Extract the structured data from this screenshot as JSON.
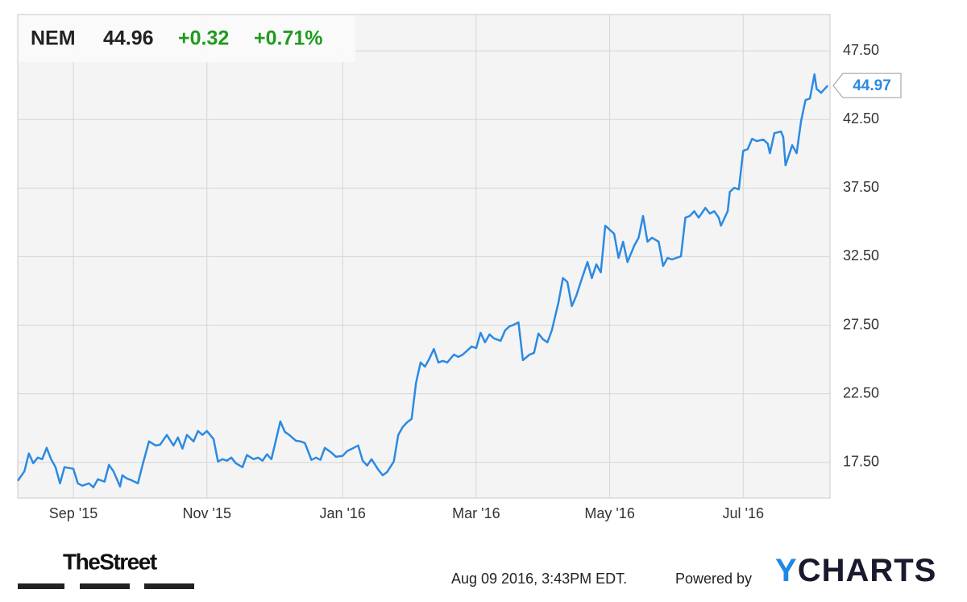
{
  "chart_data": {
    "type": "line",
    "symbol": "NEM",
    "price": "44.96",
    "change": "+0.32",
    "change_pct": "+0.71%",
    "color": "#2b8ae2",
    "grid": true,
    "xlim": [
      0,
      365
    ],
    "xticks": [
      {
        "value": 25,
        "label": "Sep '15"
      },
      {
        "value": 85,
        "label": "Nov '15"
      },
      {
        "value": 146,
        "label": "Jan '16"
      },
      {
        "value": 206,
        "label": "Mar '16"
      },
      {
        "value": 266,
        "label": "May '16"
      },
      {
        "value": 326,
        "label": "Jul '16"
      }
    ],
    "ylim": [
      14.9,
      50.15
    ],
    "yticks": [
      {
        "value": 17.5,
        "label": "17.50"
      },
      {
        "value": 22.5,
        "label": "22.50"
      },
      {
        "value": 27.5,
        "label": "27.50"
      },
      {
        "value": 32.5,
        "label": "32.50"
      },
      {
        "value": 37.5,
        "label": "37.50"
      },
      {
        "value": 42.5,
        "label": "42.50"
      },
      {
        "value": 47.5,
        "label": "47.50"
      }
    ],
    "x": [
      0,
      3,
      5,
      7,
      9,
      11,
      13,
      15,
      17,
      19,
      21,
      25,
      27,
      29,
      32,
      34,
      36,
      39,
      41,
      43,
      46,
      47,
      49,
      51,
      54,
      56,
      59,
      62,
      64,
      67,
      70,
      72,
      74,
      76,
      79,
      81,
      83,
      85,
      88,
      90,
      92,
      94,
      96,
      98,
      101,
      103,
      106,
      108,
      110,
      112,
      114,
      118,
      120,
      122,
      125,
      127,
      129,
      132,
      134,
      136,
      138,
      141,
      143,
      146,
      148,
      151,
      153,
      155,
      157,
      159,
      162,
      164,
      166,
      169,
      171,
      173,
      175,
      177,
      179,
      181,
      183,
      185,
      187,
      189,
      191,
      193,
      196,
      198,
      200,
      202,
      204,
      206,
      208,
      210,
      212,
      214,
      217,
      219,
      221,
      223,
      225,
      227,
      230,
      232,
      234,
      236,
      238,
      240,
      243,
      245,
      247,
      249,
      251,
      253,
      256,
      258,
      260,
      262,
      264,
      266,
      268,
      270,
      272,
      274,
      277,
      279,
      281,
      283,
      285,
      288,
      290,
      292,
      294,
      296,
      298,
      300,
      302,
      304,
      306,
      309,
      311,
      313,
      315,
      316,
      319,
      320,
      322,
      324,
      326,
      328,
      330,
      332,
      335,
      337,
      338,
      340,
      343,
      344,
      345,
      348,
      350,
      352,
      354,
      356,
      358,
      359,
      361,
      362,
      364
    ],
    "values": [
      16.15,
      16.85,
      18.15,
      17.44,
      17.85,
      17.73,
      18.56,
      17.73,
      17.15,
      15.97,
      17.15,
      17.03,
      15.97,
      15.8,
      15.97,
      15.68,
      16.27,
      16.09,
      17.32,
      16.85,
      15.74,
      16.56,
      16.33,
      16.21,
      15.97,
      17.27,
      19.03,
      18.73,
      18.79,
      19.5,
      18.73,
      19.32,
      18.5,
      19.5,
      19.03,
      19.79,
      19.5,
      19.79,
      19.2,
      17.56,
      17.73,
      17.62,
      17.85,
      17.44,
      17.15,
      18.03,
      17.73,
      17.85,
      17.62,
      18.09,
      17.73,
      20.49,
      19.73,
      19.5,
      19.08,
      19.03,
      18.91,
      17.68,
      17.85,
      17.68,
      18.56,
      18.2,
      17.91,
      17.97,
      18.32,
      18.56,
      18.73,
      17.62,
      17.27,
      17.73,
      16.97,
      16.56,
      16.8,
      17.56,
      19.5,
      20.08,
      20.43,
      20.67,
      23.31,
      24.78,
      24.48,
      25.07,
      25.77,
      24.78,
      24.9,
      24.78,
      25.36,
      25.19,
      25.36,
      25.66,
      25.95,
      25.83,
      26.95,
      26.25,
      26.83,
      26.54,
      26.36,
      27.12,
      27.42,
      27.54,
      27.71,
      24.95,
      25.36,
      25.48,
      26.89,
      26.48,
      26.25,
      27.12,
      29.18,
      30.94,
      30.65,
      28.89,
      29.65,
      30.65,
      32.11,
      30.94,
      31.94,
      31.35,
      34.76,
      34.46,
      34.17,
      32.41,
      33.58,
      32.11,
      33.29,
      33.88,
      35.46,
      33.58,
      33.88,
      33.58,
      31.82,
      32.41,
      32.29,
      32.41,
      32.52,
      35.34,
      35.46,
      35.81,
      35.34,
      36.05,
      35.64,
      35.81,
      35.34,
      34.76,
      35.81,
      37.22,
      37.51,
      37.4,
      40.21,
      40.33,
      41.09,
      40.92,
      41.03,
      40.74,
      40.04,
      41.5,
      41.62,
      41.21,
      39.16,
      40.62,
      40.04,
      42.39,
      43.91,
      44.03,
      45.79,
      44.73,
      44.44,
      44.62,
      44.97
    ],
    "publisher": "TheStreet",
    "timestamp": "Aug 09 2016, 3:43PM EDT.",
    "powered_by": "Powered by",
    "brand": "YCHARTS"
  }
}
